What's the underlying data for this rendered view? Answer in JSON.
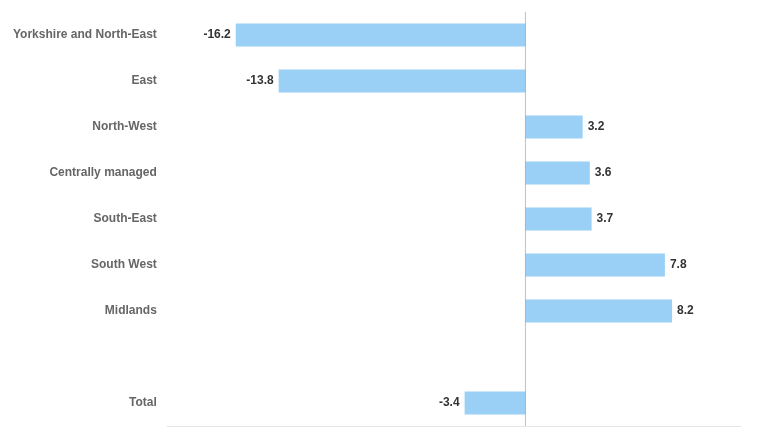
{
  "chart_data": {
    "type": "bar",
    "orientation": "horizontal",
    "categories": [
      "Yorkshire and North-East",
      "East",
      "North-West",
      "Centrally managed",
      "South-East",
      "South West",
      "Midlands",
      null,
      "Total"
    ],
    "values": [
      -16.2,
      -13.8,
      3.2,
      3.6,
      3.7,
      7.8,
      8.2,
      null,
      -3.4
    ],
    "xlim": [
      -20,
      12
    ],
    "data_labels": true,
    "tick_labels": "y",
    "grid": false
  }
}
